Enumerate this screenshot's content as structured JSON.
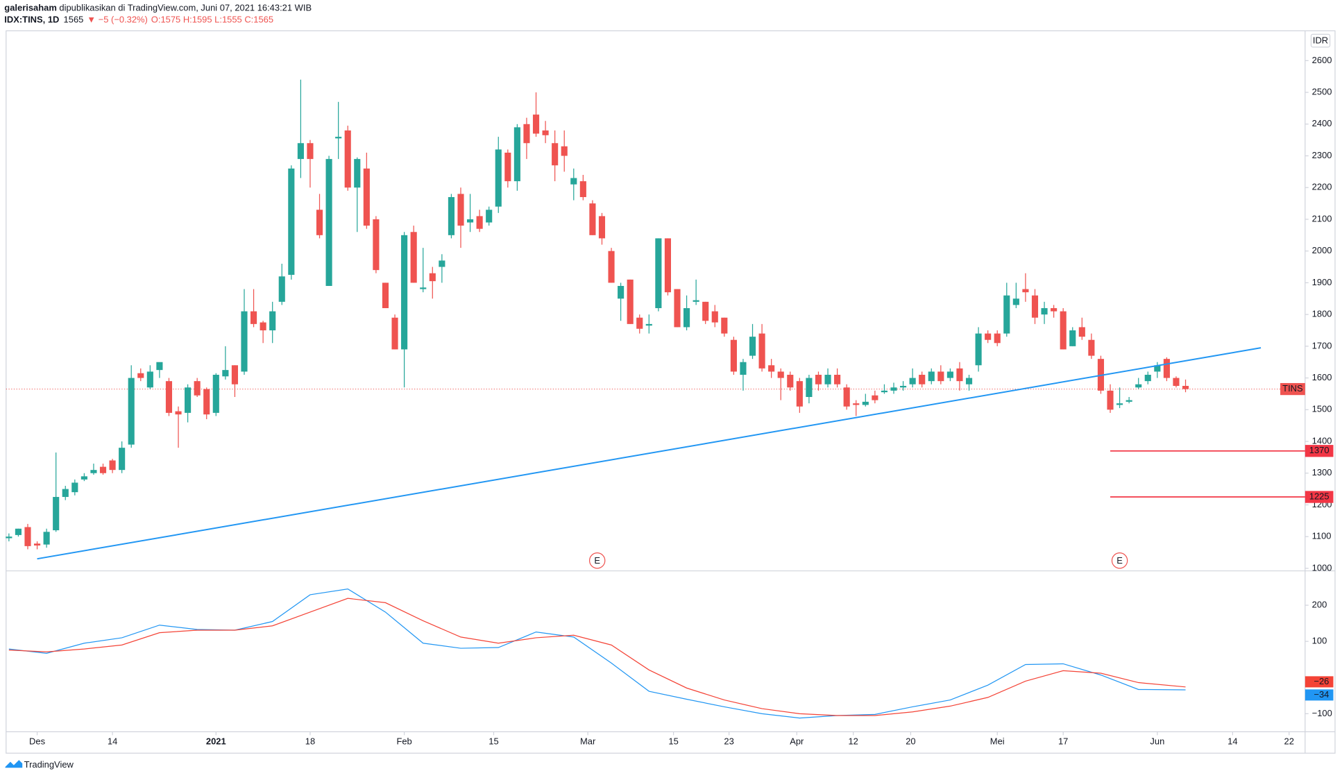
{
  "header": {
    "author": "galerisaham",
    "published": " dipublikasikan di TradingView.com, Juni 07, 2021 16:43:21 WIB",
    "symbol": "IDX:TINS, 1D",
    "price": "1565",
    "change": "▼ −5 (−0.32%)",
    "ohlc_text": "O:1575 H:1595 L:1555 C:1565"
  },
  "footer": {
    "brand": "TradingView"
  },
  "chart_data": [
    {
      "type": "candlestick",
      "currency": "IDR",
      "symbol_label": "TINS",
      "last_price": 1565,
      "up_color": "#26a69a",
      "down_color": "#ef5350",
      "xlim": [
        -0.3,
        137.7
      ],
      "ylim": [
        992,
        2694
      ],
      "yticks": [
        1000,
        1100,
        1200,
        1300,
        1400,
        1500,
        1600,
        1700,
        1800,
        1900,
        2000,
        2100,
        2200,
        2300,
        2400,
        2500,
        2600
      ],
      "xticks": [
        {
          "value": 3,
          "label": "Des"
        },
        {
          "value": 11,
          "label": "14"
        },
        {
          "value": 22,
          "label": "2021"
        },
        {
          "value": 32,
          "label": "18"
        },
        {
          "value": 42,
          "label": "Feb"
        },
        {
          "value": 51.5,
          "label": "15"
        },
        {
          "value": 61.5,
          "label": "Mar"
        },
        {
          "value": 70.6,
          "label": "15"
        },
        {
          "value": 76.5,
          "label": "23"
        },
        {
          "value": 83.7,
          "label": "Apr"
        },
        {
          "value": 89.7,
          "label": "12"
        },
        {
          "value": 95.8,
          "label": "20"
        },
        {
          "value": 105,
          "label": "Mei"
        },
        {
          "value": 112,
          "label": "17"
        },
        {
          "value": 122,
          "label": "Jun"
        },
        {
          "value": 130,
          "label": "14"
        },
        {
          "value": 136,
          "label": "22"
        }
      ],
      "ohlc": [
        [
          1095,
          1110,
          1085,
          1100
        ],
        [
          1105,
          1125,
          1100,
          1125
        ],
        [
          1130,
          1140,
          1060,
          1070
        ],
        [
          1078,
          1085,
          1060,
          1072
        ],
        [
          1075,
          1125,
          1065,
          1115
        ],
        [
          1120,
          1365,
          1115,
          1225
        ],
        [
          1225,
          1260,
          1215,
          1250
        ],
        [
          1240,
          1280,
          1230,
          1270
        ],
        [
          1280,
          1300,
          1275,
          1290
        ],
        [
          1300,
          1330,
          1295,
          1310
        ],
        [
          1320,
          1330,
          1295,
          1300
        ],
        [
          1340,
          1345,
          1300,
          1310
        ],
        [
          1310,
          1400,
          1300,
          1380
        ],
        [
          1390,
          1640,
          1380,
          1600
        ],
        [
          1615,
          1630,
          1590,
          1600
        ],
        [
          1570,
          1640,
          1565,
          1620
        ],
        [
          1625,
          1645,
          1600,
          1650
        ],
        [
          1590,
          1600,
          1480,
          1490
        ],
        [
          1495,
          1510,
          1380,
          1485
        ],
        [
          1490,
          1580,
          1460,
          1570
        ],
        [
          1590,
          1600,
          1540,
          1545
        ],
        [
          1565,
          1570,
          1470,
          1485
        ],
        [
          1490,
          1615,
          1480,
          1610
        ],
        [
          1605,
          1700,
          1595,
          1625
        ],
        [
          1640,
          1640,
          1540,
          1580
        ],
        [
          1620,
          1880,
          1610,
          1810
        ],
        [
          1810,
          1880,
          1760,
          1770
        ],
        [
          1775,
          1780,
          1710,
          1750
        ],
        [
          1750,
          1840,
          1710,
          1810
        ],
        [
          1840,
          1960,
          1830,
          1920
        ],
        [
          1925,
          2270,
          1910,
          2260
        ],
        [
          2290,
          2540,
          2230,
          2340
        ],
        [
          2340,
          2350,
          2200,
          2290
        ],
        [
          2130,
          2180,
          2040,
          2050
        ],
        [
          1890,
          2300,
          1890,
          2290
        ],
        [
          2355,
          2470,
          2290,
          2360
        ],
        [
          2380,
          2395,
          2190,
          2200
        ],
        [
          2200,
          2295,
          2060,
          2290
        ],
        [
          2260,
          2310,
          2070,
          2080
        ],
        [
          2100,
          2110,
          1930,
          1940
        ],
        [
          1900,
          1900,
          1820,
          1820
        ],
        [
          1790,
          1800,
          1690,
          1690
        ],
        [
          1690,
          2060,
          1570,
          2050
        ],
        [
          2060,
          2080,
          1900,
          1900
        ],
        [
          1880,
          2010,
          1870,
          1885
        ],
        [
          1930,
          1950,
          1850,
          1905
        ],
        [
          1950,
          1990,
          1900,
          1970
        ],
        [
          2050,
          2180,
          2040,
          2170
        ],
        [
          2180,
          2200,
          2010,
          2080
        ],
        [
          2090,
          2180,
          2060,
          2100
        ],
        [
          2110,
          2130,
          2060,
          2070
        ],
        [
          2090,
          2140,
          2080,
          2130
        ],
        [
          2140,
          2360,
          2120,
          2320
        ],
        [
          2310,
          2320,
          2200,
          2220
        ],
        [
          2220,
          2400,
          2190,
          2390
        ],
        [
          2400,
          2420,
          2290,
          2340
        ],
        [
          2430,
          2500,
          2360,
          2370
        ],
        [
          2380,
          2410,
          2340,
          2365
        ],
        [
          2340,
          2380,
          2220,
          2270
        ],
        [
          2330,
          2380,
          2250,
          2300
        ],
        [
          2210,
          2260,
          2160,
          2230
        ],
        [
          2220,
          2240,
          2160,
          2170
        ],
        [
          2150,
          2160,
          2050,
          2050
        ],
        [
          2110,
          2120,
          2020,
          2040
        ],
        [
          2000,
          2010,
          1900,
          1900
        ],
        [
          1850,
          1900,
          1780,
          1890
        ],
        [
          1910,
          1910,
          1770,
          1770
        ],
        [
          1790,
          1800,
          1740,
          1755
        ],
        [
          1765,
          1800,
          1740,
          1770
        ],
        [
          1820,
          2040,
          1810,
          2040
        ],
        [
          2040,
          2040,
          1860,
          1870
        ],
        [
          1880,
          1880,
          1760,
          1760
        ],
        [
          1760,
          1860,
          1750,
          1820
        ],
        [
          1840,
          1910,
          1830,
          1845
        ],
        [
          1840,
          1840,
          1770,
          1780
        ],
        [
          1810,
          1830,
          1760,
          1775
        ],
        [
          1790,
          1790,
          1730,
          1740
        ],
        [
          1720,
          1730,
          1610,
          1620
        ],
        [
          1610,
          1660,
          1560,
          1650
        ],
        [
          1670,
          1770,
          1660,
          1730
        ],
        [
          1740,
          1770,
          1620,
          1630
        ],
        [
          1640,
          1660,
          1600,
          1620
        ],
        [
          1620,
          1630,
          1530,
          1600
        ],
        [
          1610,
          1620,
          1560,
          1570
        ],
        [
          1590,
          1600,
          1490,
          1510
        ],
        [
          1540,
          1610,
          1520,
          1600
        ],
        [
          1610,
          1620,
          1560,
          1580
        ],
        [
          1580,
          1630,
          1570,
          1610
        ],
        [
          1610,
          1630,
          1570,
          1580
        ],
        [
          1570,
          1580,
          1500,
          1510
        ],
        [
          1520,
          1530,
          1480,
          1515
        ],
        [
          1515,
          1550,
          1510,
          1525
        ],
        [
          1545,
          1560,
          1520,
          1530
        ],
        [
          1555,
          1580,
          1550,
          1560
        ],
        [
          1560,
          1585,
          1550,
          1570
        ],
        [
          1570,
          1590,
          1560,
          1575
        ],
        [
          1580,
          1630,
          1570,
          1600
        ],
        [
          1610,
          1620,
          1570,
          1580
        ],
        [
          1590,
          1630,
          1580,
          1620
        ],
        [
          1620,
          1640,
          1580,
          1590
        ],
        [
          1600,
          1630,
          1590,
          1620
        ],
        [
          1630,
          1650,
          1560,
          1590
        ],
        [
          1580,
          1610,
          1560,
          1600
        ],
        [
          1640,
          1760,
          1620,
          1740
        ],
        [
          1740,
          1750,
          1710,
          1720
        ],
        [
          1740,
          1750,
          1700,
          1710
        ],
        [
          1740,
          1900,
          1730,
          1860
        ],
        [
          1830,
          1900,
          1820,
          1850
        ],
        [
          1880,
          1930,
          1840,
          1870
        ],
        [
          1860,
          1880,
          1770,
          1790
        ],
        [
          1800,
          1840,
          1770,
          1820
        ],
        [
          1820,
          1830,
          1790,
          1810
        ],
        [
          1810,
          1820,
          1690,
          1690
        ],
        [
          1700,
          1760,
          1700,
          1750
        ],
        [
          1760,
          1790,
          1720,
          1730
        ],
        [
          1720,
          1740,
          1660,
          1670
        ],
        [
          1660,
          1670,
          1550,
          1560
        ],
        [
          1560,
          1580,
          1490,
          1500
        ],
        [
          1515,
          1570,
          1505,
          1520
        ],
        [
          1525,
          1540,
          1520,
          1530
        ],
        [
          1570,
          1600,
          1565,
          1580
        ],
        [
          1590,
          1620,
          1580,
          1610
        ],
        [
          1620,
          1650,
          1600,
          1640
        ],
        [
          1660,
          1665,
          1590,
          1600
        ],
        [
          1600,
          1605,
          1570,
          1575
        ],
        [
          1575,
          1595,
          1555,
          1565
        ]
      ],
      "trendline": {
        "x": [
          3,
          133
        ],
        "y": [
          1030,
          1695
        ],
        "color": "#2196f3"
      },
      "levels": {
        "start": 117,
        "values": [
          1370,
          1225
        ],
        "color": "#f23645"
      },
      "earnings": {
        "x": [
          62.5,
          118
        ],
        "label": "E"
      }
    },
    {
      "type": "line",
      "xlim": [
        -0.3,
        137.7
      ],
      "ylim": [
        -150,
        295
      ],
      "yticks": [
        200,
        100,
        {
          "value": -100,
          "label": "−100"
        }
      ],
      "x": [
        0,
        4,
        8,
        12,
        16,
        20,
        24,
        28,
        32,
        36,
        40,
        44,
        48,
        52,
        56,
        60,
        64,
        68,
        72,
        76,
        80,
        84,
        88,
        92,
        96,
        100,
        104,
        108,
        112,
        116,
        120,
        125
      ],
      "series": [
        {
          "color": "#2196f3",
          "last_label": "−34",
          "values": [
            79,
            67,
            95,
            110,
            145,
            133,
            131,
            155,
            229,
            245,
            181,
            95,
            81,
            83,
            126,
            112,
            40,
            -38,
            -60,
            -81,
            -100,
            -112,
            -105,
            -102,
            -81,
            -62,
            -21,
            36,
            38,
            7,
            -33,
            -34
          ]
        },
        {
          "color": "#f44336",
          "last_label": "−26",
          "values": [
            76,
            71,
            79,
            90,
            124,
            131,
            131,
            143,
            181,
            219,
            207,
            157,
            112,
            95,
            110,
            117,
            90,
            21,
            -29,
            -62,
            -86,
            -100,
            -105,
            -105,
            -95,
            -79,
            -55,
            -10,
            19,
            12,
            -14,
            -26
          ]
        }
      ]
    }
  ]
}
